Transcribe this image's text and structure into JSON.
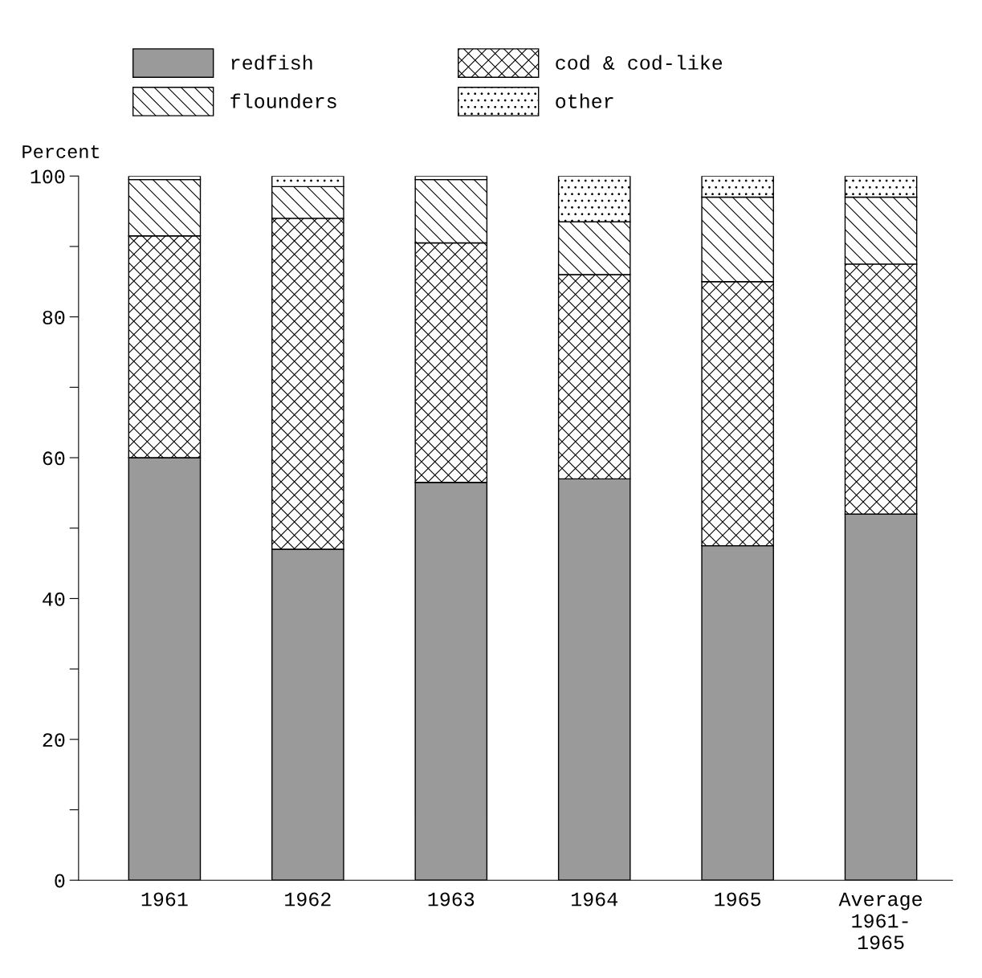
{
  "chart_data": {
    "type": "bar",
    "stacked": true,
    "ylabel": "Percent",
    "categories": [
      "1961",
      "1962",
      "1963",
      "1964",
      "1965",
      "Average\n1961-\n1965"
    ],
    "series": [
      {
        "name": "redfish",
        "color": "#9a9a9a",
        "values": [
          60,
          47,
          56.5,
          57,
          47.5,
          52
        ]
      },
      {
        "name": "cod & cod-like",
        "color": "#000000",
        "values": [
          31.5,
          47,
          34,
          29,
          37.5,
          35.5
        ]
      },
      {
        "name": "flounders",
        "color": "#000000",
        "values": [
          8,
          4.5,
          9,
          7.5,
          12,
          9.5
        ]
      },
      {
        "name": "other",
        "color": "#000000",
        "values": [
          0.5,
          1.5,
          0.5,
          6.5,
          3,
          3
        ]
      }
    ],
    "ylim": [
      0,
      100
    ],
    "yticks": [
      0,
      {
        "value": 10,
        "label": null
      },
      20,
      {
        "value": 30,
        "label": null
      },
      40,
      {
        "value": 50,
        "label": null
      },
      60,
      {
        "value": 70,
        "label": null
      },
      80,
      {
        "value": 90,
        "label": null
      },
      100
    ],
    "grid": false,
    "legend": "top"
  }
}
